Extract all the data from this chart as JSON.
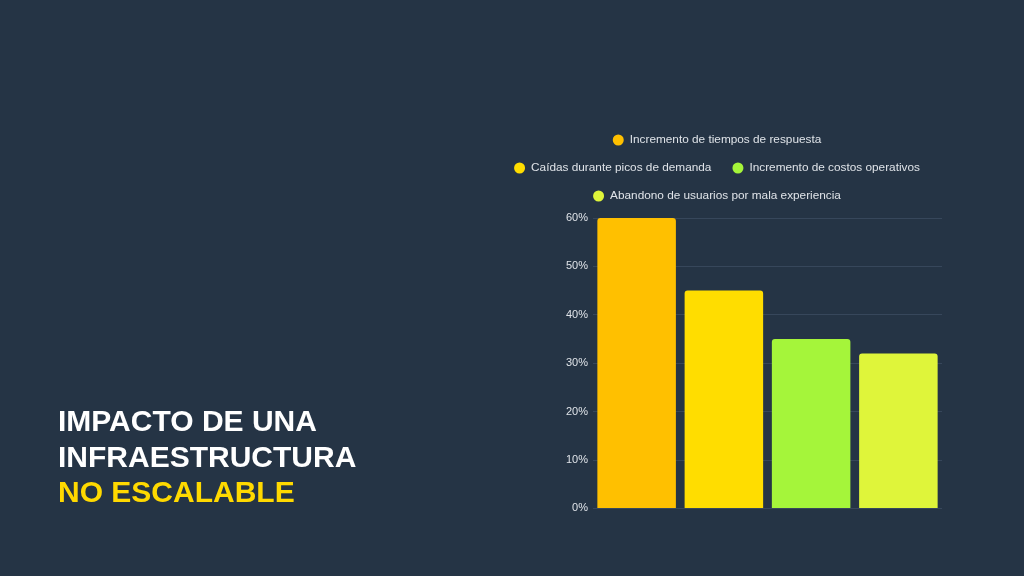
{
  "chart_data": {
    "type": "bar",
    "title": "IMPACTO DE UNA INFRAESTRUCTURA",
    "subtitle": "NO ESCALABLE",
    "categories": [
      null
    ],
    "series": [
      {
        "name": "Incremento de tiempos de respuesta",
        "color": "#ffc000",
        "values": [
          60
        ]
      },
      {
        "name": "Caídas durante picos de demanda",
        "color": "#ffdd00",
        "values": [
          45
        ]
      },
      {
        "name": "Incremento de costos operativos",
        "color": "#a5f53a",
        "values": [
          35
        ]
      },
      {
        "name": "Abandono de usuarios por mala experiencia",
        "color": "#dff53a",
        "values": [
          32
        ]
      }
    ],
    "ylim": [
      0,
      60
    ],
    "yticks": [
      {
        "value": 0,
        "label": "0%"
      },
      {
        "value": 10,
        "label": "10%"
      },
      {
        "value": 20,
        "label": "20%"
      },
      {
        "value": 30,
        "label": "30%"
      },
      {
        "value": 40,
        "label": "40%"
      },
      {
        "value": 50,
        "label": "50%"
      },
      {
        "value": 60,
        "label": "60%"
      }
    ],
    "grid": "y",
    "legend": "top",
    "tick_labels": "y"
  }
}
